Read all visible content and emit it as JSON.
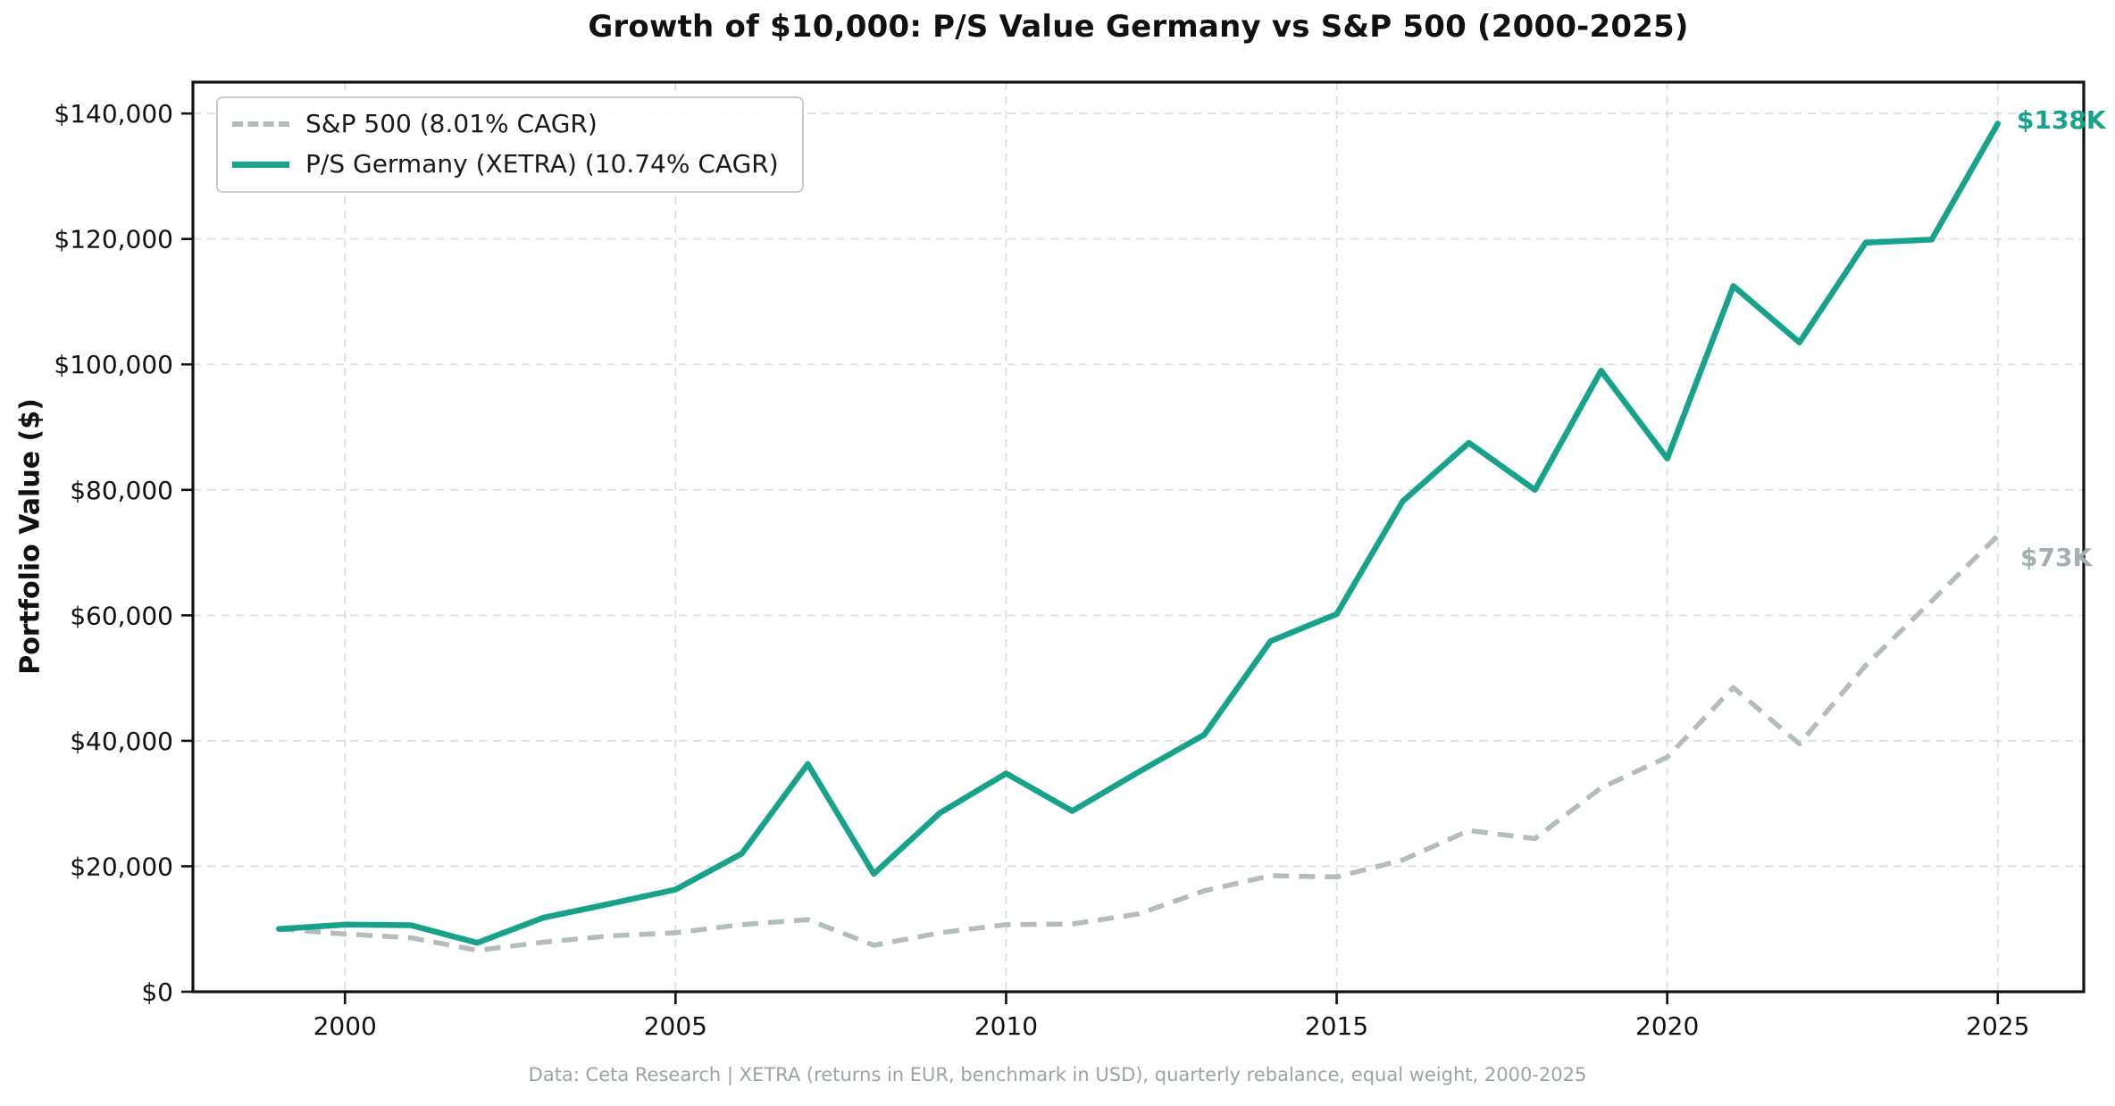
{
  "title": "Growth of $10,000: P/S Value Germany vs S&P 500 (2000-2025)",
  "y_axis_label": "Portfolio Value ($)",
  "footer": "Data: Ceta Research | XETRA (returns in EUR, benchmark in USD), quarterly rebalance, equal weight, 2000-2025",
  "legend": {
    "items": [
      {
        "label": "S&P 500 (8.01% CAGR)",
        "color": "#b3bdbf",
        "dashed": true
      },
      {
        "label": "P/S Germany (XETRA) (10.74% CAGR)",
        "color": "#17a28b",
        "dashed": false
      }
    ]
  },
  "end_labels": {
    "germany": "$138K",
    "sp500": "$73K"
  },
  "colors": {
    "germany_line": "#17a28b",
    "sp500_line": "#b3bdbf",
    "gridline": "#dcdfdf",
    "axis": "#111111",
    "end_label_sp500": "#a3afb3",
    "footer_text": "#9aa4a7"
  },
  "chart_data": {
    "type": "line",
    "title": "Growth of $10,000: P/S Value Germany vs S&P 500 (2000-2025)",
    "xlabel": "",
    "ylabel": "Portfolio Value ($)",
    "grid": true,
    "legend_position": "upper left",
    "xlim": [
      1997.7,
      2026.3
    ],
    "ylim": [
      0,
      145000
    ],
    "x": [
      1999,
      2000,
      2001,
      2002,
      2003,
      2004,
      2005,
      2006,
      2007,
      2008,
      2009,
      2010,
      2011,
      2012,
      2013,
      2014,
      2015,
      2016,
      2017,
      2018,
      2019,
      2020,
      2021,
      2022,
      2023,
      2024,
      2025
    ],
    "series": [
      {
        "name": "S&P 500 (8.01% CAGR)",
        "color": "#b3bdbf",
        "dashed": true,
        "values": [
          10000,
          9200,
          8600,
          6600,
          7900,
          8900,
          9400,
          10700,
          11500,
          7400,
          9400,
          10700,
          10800,
          12400,
          16100,
          18500,
          18300,
          21000,
          25700,
          24400,
          32500,
          37400,
          48500,
          39500,
          52000,
          62300,
          72700
        ]
      },
      {
        "name": "P/S Germany (XETRA) (10.74% CAGR)",
        "color": "#17a28b",
        "dashed": false,
        "values": [
          10000,
          10700,
          10600,
          7800,
          11800,
          14000,
          16300,
          22000,
          36300,
          18800,
          28500,
          34800,
          28800,
          35000,
          41000,
          55900,
          60200,
          78200,
          87500,
          80000,
          99000,
          85000,
          112500,
          103500,
          119400,
          119900,
          138400
        ]
      }
    ],
    "x_ticks": [
      {
        "v": 2000,
        "label": "2000"
      },
      {
        "v": 2005,
        "label": "2005"
      },
      {
        "v": 2010,
        "label": "2010"
      },
      {
        "v": 2015,
        "label": "2015"
      },
      {
        "v": 2020,
        "label": "2020"
      },
      {
        "v": 2025,
        "label": "2025"
      }
    ],
    "y_ticks": [
      {
        "v": 0,
        "label": "$0"
      },
      {
        "v": 20000,
        "label": "$20,000"
      },
      {
        "v": 40000,
        "label": "$40,000"
      },
      {
        "v": 60000,
        "label": "$60,000"
      },
      {
        "v": 80000,
        "label": "$80,000"
      },
      {
        "v": 100000,
        "label": "$100,000"
      },
      {
        "v": 120000,
        "label": "$120,000"
      },
      {
        "v": 140000,
        "label": "$140,000"
      }
    ]
  }
}
